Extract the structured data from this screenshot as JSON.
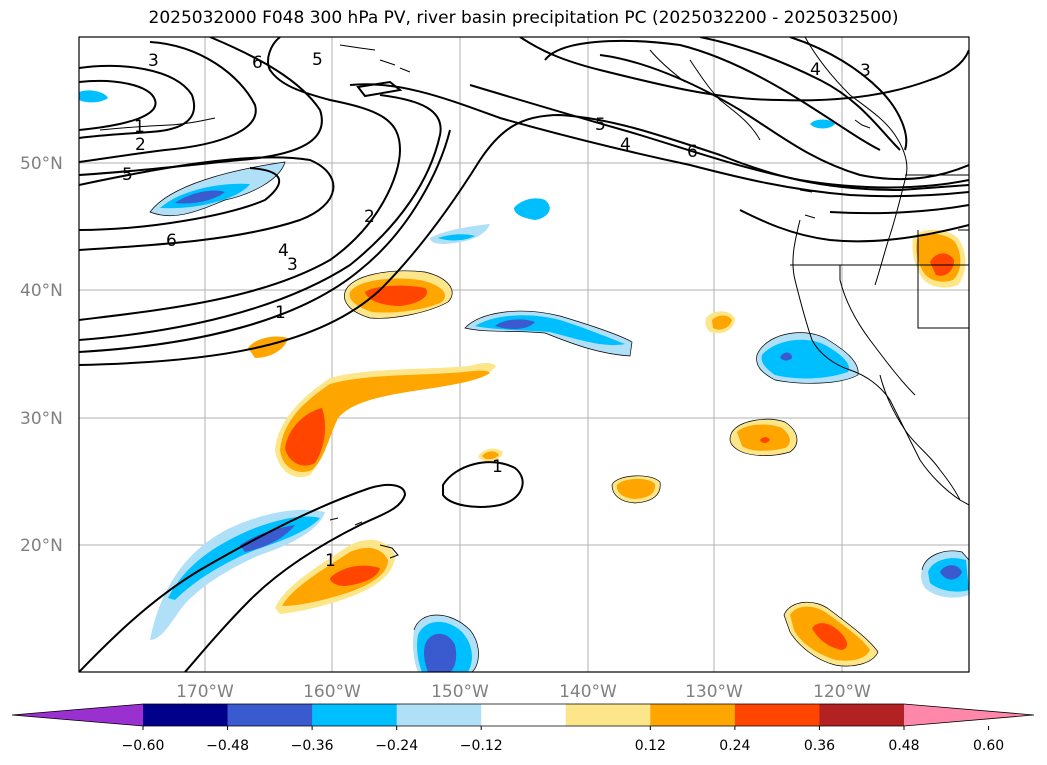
{
  "title": "2025032000 F048 300 hPa PV, river basin precipitation PC (2025032200 - 2025032500)",
  "latitude_labels": [
    "50°N",
    "40°N",
    "30°N",
    "20°N"
  ],
  "longitude_labels": [
    "170°W",
    "160°W",
    "150°W",
    "140°W",
    "130°W",
    "120°W"
  ],
  "colorbar": {
    "tick_labels": [
      "−0.60",
      "−0.48",
      "−0.36",
      "−0.24",
      "−0.12",
      "0.12",
      "0.24",
      "0.36",
      "0.48",
      "0.60"
    ],
    "colors": [
      "#9b30d0",
      "#00008b",
      "#3a5bd0",
      "#00bfff",
      "#b0e0f8",
      "#ffffff",
      "#fde68a",
      "#ffa500",
      "#ff4500",
      "#b22222",
      "#ff88aa"
    ]
  },
  "contour_labels": [
    "3",
    "6",
    "5",
    "4",
    "3",
    "1",
    "2",
    "5",
    "6",
    "5",
    "4",
    "6",
    "2",
    "4",
    "3",
    "1",
    "1",
    "1"
  ],
  "colors": {
    "gridline": "#b0b0b0",
    "coastline": "#000000",
    "contour": "#000000"
  }
}
